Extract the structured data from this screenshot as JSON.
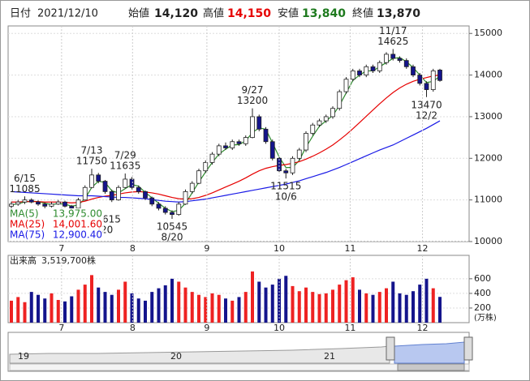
{
  "header": {
    "date_label": "日付",
    "date": "2021/12/10",
    "open_label": "始値",
    "open": "14,120",
    "high_label": "高値",
    "high": "14,150",
    "low_label": "安値",
    "low": "13,840",
    "close_label": "終値",
    "close": "13,870"
  },
  "chart_data": {
    "type": "candlestick",
    "ylim": [
      10000,
      15180
    ],
    "yticks": [
      10000,
      11000,
      12000,
      13000,
      14000,
      15000
    ],
    "xticks": [
      {
        "value": 7.5,
        "label": "7"
      },
      {
        "value": 18.1,
        "label": "8"
      },
      {
        "value": 29.2,
        "label": "9"
      },
      {
        "value": 40,
        "label": "10"
      },
      {
        "value": 50.6,
        "label": "11"
      },
      {
        "value": 61.4,
        "label": "12"
      }
    ],
    "up_color": "#ffffff",
    "down_color": "#14148c",
    "legend_position": "bottom-left",
    "candles": [
      [
        10850,
        10960,
        10800,
        10900
      ],
      [
        10900,
        11000,
        10860,
        10950
      ],
      [
        10950,
        11085,
        10900,
        11000
      ],
      [
        11000,
        11040,
        10920,
        10950
      ],
      [
        10950,
        10990,
        10860,
        10900
      ],
      [
        10900,
        10940,
        10800,
        10850
      ],
      [
        10850,
        10950,
        10820,
        10900
      ],
      [
        10900,
        11000,
        10880,
        10950
      ],
      [
        10950,
        10980,
        10820,
        10850
      ],
      [
        10850,
        10880,
        10740,
        10800
      ],
      [
        10800,
        11050,
        10780,
        11000
      ],
      [
        11000,
        11350,
        10980,
        11300
      ],
      [
        11300,
        11750,
        11280,
        11600
      ],
      [
        11600,
        11650,
        11400,
        11450
      ],
      [
        11450,
        11480,
        11150,
        11200
      ],
      [
        11200,
        11250,
        10950,
        11000
      ],
      [
        11000,
        11350,
        10980,
        11300
      ],
      [
        11300,
        11635,
        11280,
        11500
      ],
      [
        11500,
        11550,
        11250,
        11300
      ],
      [
        11300,
        11350,
        11150,
        11200
      ],
      [
        11200,
        11230,
        11000,
        11050
      ],
      [
        11050,
        11080,
        10850,
        10900
      ],
      [
        10900,
        10950,
        10750,
        10800
      ],
      [
        10800,
        10850,
        10650,
        10700
      ],
      [
        10700,
        10750,
        10545,
        10650
      ],
      [
        10650,
        10950,
        10620,
        10900
      ],
      [
        10900,
        11250,
        10880,
        11200
      ],
      [
        11200,
        11450,
        11150,
        11400
      ],
      [
        11400,
        11750,
        11380,
        11700
      ],
      [
        11700,
        11950,
        11650,
        11900
      ],
      [
        11900,
        12150,
        11850,
        12100
      ],
      [
        12100,
        12350,
        12050,
        12300
      ],
      [
        12300,
        12380,
        12200,
        12250
      ],
      [
        12250,
        12450,
        12200,
        12400
      ],
      [
        12400,
        12450,
        12300,
        12350
      ],
      [
        12350,
        12550,
        12300,
        12500
      ],
      [
        12500,
        13200,
        12480,
        13000
      ],
      [
        13000,
        13050,
        12650,
        12700
      ],
      [
        12700,
        12750,
        12350,
        12400
      ],
      [
        12400,
        12450,
        11950,
        12000
      ],
      [
        12000,
        12050,
        11650,
        11700
      ],
      [
        11700,
        11750,
        11515,
        11650
      ],
      [
        11650,
        12050,
        11600,
        12000
      ],
      [
        12000,
        12250,
        11950,
        12200
      ],
      [
        12200,
        12650,
        12150,
        12600
      ],
      [
        12600,
        12850,
        12550,
        12800
      ],
      [
        12800,
        12950,
        12750,
        12900
      ],
      [
        12900,
        13050,
        12850,
        13000
      ],
      [
        13000,
        13250,
        12950,
        13200
      ],
      [
        13200,
        13650,
        13150,
        13600
      ],
      [
        13600,
        13950,
        13550,
        13900
      ],
      [
        13900,
        14150,
        13850,
        14100
      ],
      [
        14100,
        14150,
        13950,
        14000
      ],
      [
        14000,
        14250,
        13950,
        14200
      ],
      [
        14200,
        14250,
        14050,
        14100
      ],
      [
        14100,
        14350,
        14050,
        14300
      ],
      [
        14300,
        14550,
        14250,
        14500
      ],
      [
        14500,
        14625,
        14350,
        14400
      ],
      [
        14400,
        14450,
        14300,
        14350
      ],
      [
        14350,
        14400,
        14150,
        14200
      ],
      [
        14200,
        14250,
        13950,
        14000
      ],
      [
        14000,
        14050,
        13750,
        13800
      ],
      [
        13800,
        13850,
        13470,
        13650
      ],
      [
        13650,
        14150,
        13600,
        14100
      ],
      [
        14120,
        14150,
        13840,
        13870
      ]
    ],
    "series": [
      {
        "name": "MA(5)",
        "color": "#2e8b2e",
        "value_label": "13,975.00",
        "values": [
          10880,
          10910,
          10950,
          10970,
          10960,
          10920,
          10890,
          10910,
          10900,
          10850,
          10880,
          11030,
          11300,
          11450,
          11420,
          11220,
          11170,
          11270,
          11370,
          11330,
          11180,
          11050,
          10920,
          10800,
          10720,
          10750,
          10920,
          11170,
          11430,
          11670,
          11900,
          12100,
          12220,
          12320,
          12330,
          12420,
          12620,
          12730,
          12700,
          12370,
          12030,
          11780,
          11780,
          11950,
          12270,
          12530,
          12770,
          12900,
          13030,
          13270,
          13570,
          13870,
          14000,
          14100,
          14100,
          14200,
          14300,
          14400,
          14420,
          14320,
          14180,
          14000,
          13820,
          13850,
          13975
        ]
      },
      {
        "name": "MA(25)",
        "color": "#e60000",
        "value_label": "14,001.60",
        "values": [
          10950,
          10950,
          10960,
          10960,
          10960,
          10950,
          10950,
          10950,
          10940,
          10930,
          10940,
          10970,
          11020,
          11060,
          11090,
          11110,
          11140,
          11170,
          11190,
          11200,
          11190,
          11170,
          11140,
          11100,
          11060,
          11030,
          11020,
          11030,
          11060,
          11110,
          11170,
          11240,
          11310,
          11380,
          11450,
          11530,
          11620,
          11700,
          11760,
          11800,
          11830,
          11850,
          11880,
          11920,
          11980,
          12050,
          12130,
          12220,
          12320,
          12440,
          12570,
          12710,
          12860,
          13010,
          13160,
          13310,
          13450,
          13580,
          13690,
          13780,
          13850,
          13900,
          13940,
          13980,
          14001.6
        ]
      },
      {
        "name": "MA(75)",
        "color": "#1a1ae6",
        "value_label": "12,900.40",
        "values": [
          11200,
          11190,
          11180,
          11170,
          11160,
          11150,
          11140,
          11130,
          11120,
          11110,
          11100,
          11100,
          11100,
          11090,
          11080,
          11070,
          11060,
          11060,
          11050,
          11040,
          11030,
          11010,
          10990,
          10970,
          10960,
          10950,
          10960,
          10980,
          11000,
          11020,
          11050,
          11080,
          11110,
          11140,
          11170,
          11200,
          11230,
          11260,
          11290,
          11320,
          11350,
          11380,
          11420,
          11460,
          11510,
          11560,
          11610,
          11660,
          11720,
          11780,
          11850,
          11920,
          11990,
          12060,
          12130,
          12200,
          12260,
          12320,
          12400,
          12480,
          12560,
          12640,
          12720,
          12810,
          12900
        ]
      }
    ],
    "annotations": [
      {
        "date": "6/15",
        "value": 11085,
        "side": "high"
      },
      {
        "date": "7/13",
        "value": 11750,
        "side": "high"
      },
      {
        "date": "7/29",
        "value": 11635,
        "side": "high"
      },
      {
        "date": "8/20",
        "value": 10545,
        "side": "low"
      },
      {
        "date": "9/27",
        "value": 13200,
        "side": "high"
      },
      {
        "date": "10/6",
        "value": 11515,
        "side": "low"
      },
      {
        "date": "11/17",
        "value": 14625,
        "side": "high"
      },
      {
        "date": "12/2",
        "value": 13470,
        "side": "low"
      }
    ],
    "hidden_texts": [
      "615",
      "/20"
    ],
    "volume": {
      "label": "出来高",
      "last_label": "3,519,700株",
      "unit": "(万株)",
      "ylim": [
        0,
        920
      ],
      "yticks": [
        200,
        400,
        600
      ],
      "up_color": "#ee2222",
      "down_color": "#14148c",
      "values": [
        300,
        350,
        280,
        420,
        380,
        330,
        400,
        310,
        290,
        360,
        450,
        520,
        650,
        480,
        420,
        380,
        450,
        560,
        400,
        330,
        300,
        420,
        470,
        510,
        600,
        560,
        480,
        420,
        380,
        350,
        400,
        380,
        330,
        300,
        350,
        420,
        700,
        560,
        480,
        520,
        600,
        640,
        500,
        430,
        480,
        420,
        390,
        400,
        450,
        520,
        580,
        620,
        450,
        400,
        380,
        420,
        470,
        560,
        400,
        380,
        430,
        520,
        600,
        470,
        351.97
      ]
    }
  },
  "navigator": {
    "labels": [
      "19",
      "20",
      "21"
    ]
  }
}
